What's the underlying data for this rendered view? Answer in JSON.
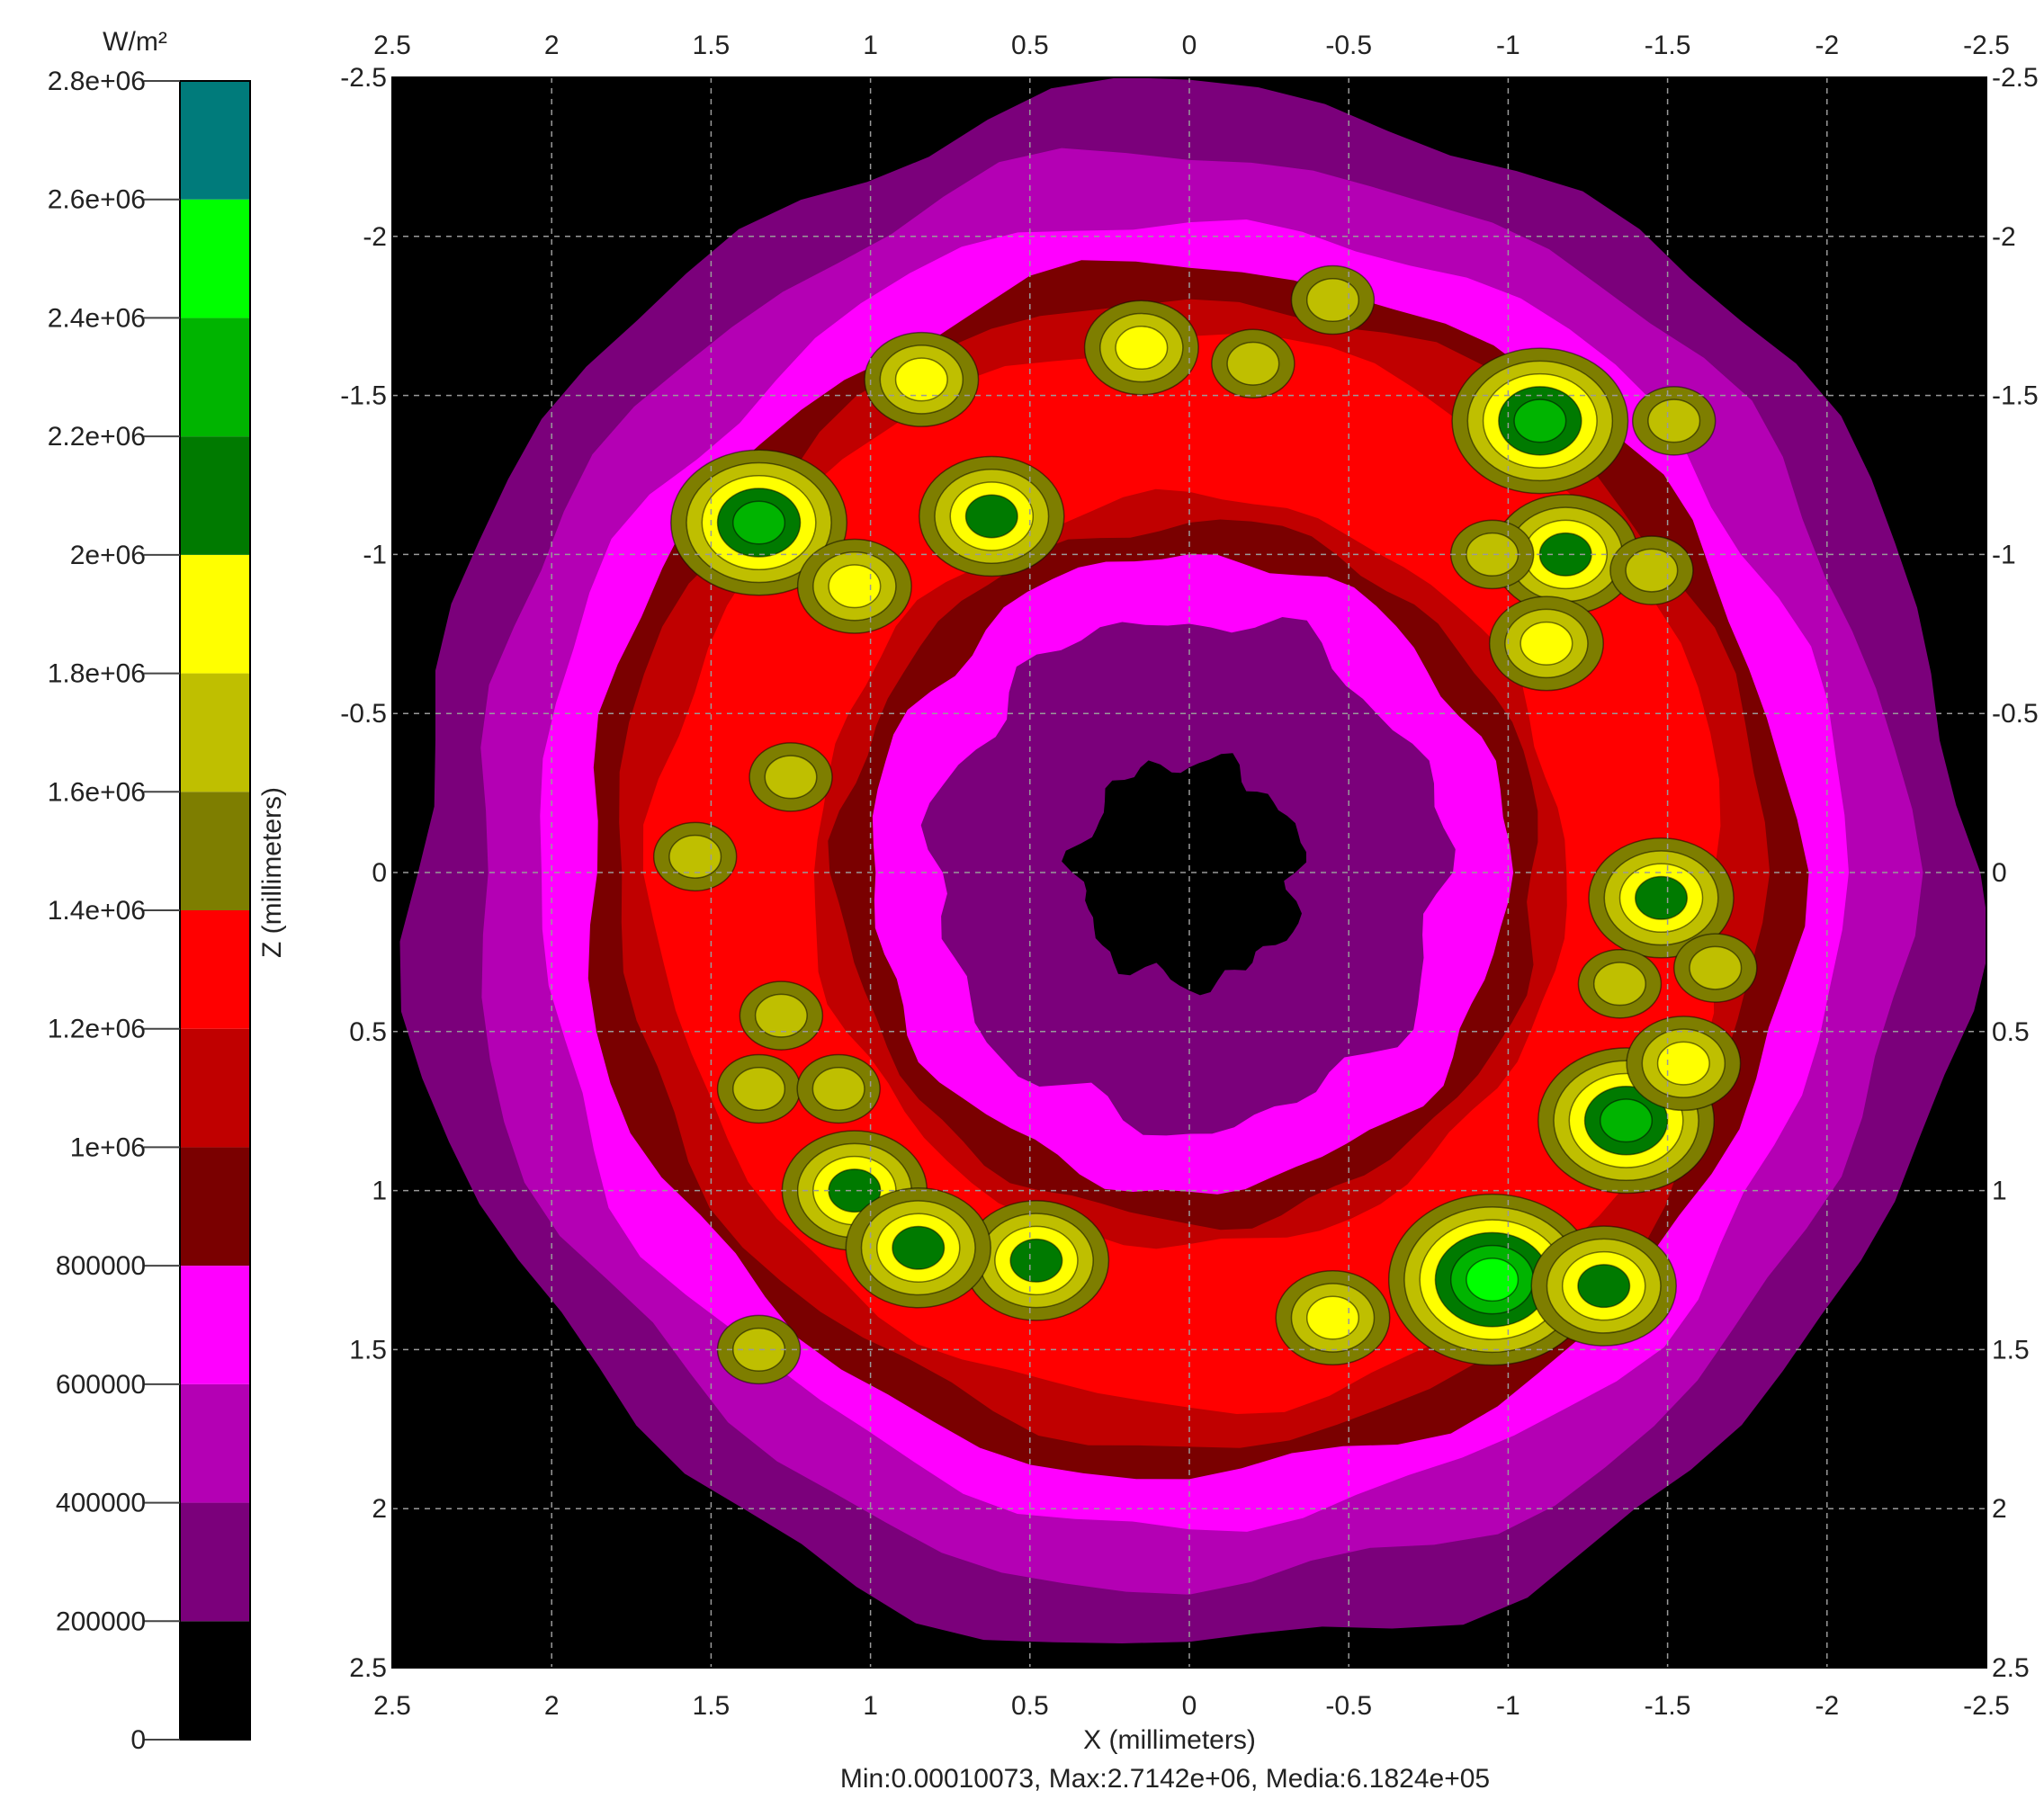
{
  "chart_data": {
    "type": "heatmap",
    "colorbar": {
      "unit": "W/m²",
      "range": [
        0,
        2800000
      ],
      "tick_labels": [
        "0",
        "200000",
        "400000",
        "600000",
        "800000",
        "1e+06",
        "1.2e+06",
        "1.4e+06",
        "1.6e+06",
        "1.8e+06",
        "2e+06",
        "2.2e+06",
        "2.4e+06",
        "2.6e+06",
        "2.8e+06"
      ],
      "levels": [
        {
          "from": 0,
          "to": 200000,
          "color": "#000000"
        },
        {
          "from": 200000,
          "to": 400000,
          "color": "#7b007b"
        },
        {
          "from": 400000,
          "to": 600000,
          "color": "#b400b4"
        },
        {
          "from": 600000,
          "to": 800000,
          "color": "#ff00ff"
        },
        {
          "from": 800000,
          "to": 1000000,
          "color": "#7a0000"
        },
        {
          "from": 1000000,
          "to": 1200000,
          "color": "#c00000"
        },
        {
          "from": 1200000,
          "to": 1400000,
          "color": "#ff0000"
        },
        {
          "from": 1400000,
          "to": 1600000,
          "color": "#7e7e00"
        },
        {
          "from": 1600000,
          "to": 1800000,
          "color": "#bfbf00"
        },
        {
          "from": 1800000,
          "to": 2000000,
          "color": "#ffff00"
        },
        {
          "from": 2000000,
          "to": 2200000,
          "color": "#007a00"
        },
        {
          "from": 2200000,
          "to": 2400000,
          "color": "#00b400"
        },
        {
          "from": 2400000,
          "to": 2600000,
          "color": "#00ff00"
        },
        {
          "from": 2600000,
          "to": 2800000,
          "color": "#007b7b"
        }
      ]
    },
    "x_axis": {
      "label": "X (millimeters)",
      "range": [
        2.5,
        -2.5
      ],
      "ticks": [
        2.5,
        2,
        1.5,
        1,
        0.5,
        0,
        -0.5,
        -1,
        -1.5,
        -2,
        -2.5
      ],
      "tick_labels": [
        "2.5",
        "2",
        "1.5",
        "1",
        "0.5",
        "0",
        "-0.5",
        "-1",
        "-1.5",
        "-2",
        "-2.5"
      ]
    },
    "z_axis": {
      "label": "Z (millimeters)",
      "range": [
        -2.5,
        2.5
      ],
      "ticks": [
        -2.5,
        -2,
        -1.5,
        -1,
        -0.5,
        0,
        0.5,
        1,
        1.5,
        2,
        2.5
      ],
      "tick_labels": [
        "-2.5",
        "-2",
        "-1.5",
        "-1",
        "-0.5",
        "0",
        "0.5",
        "1",
        "1.5",
        "2",
        "2.5"
      ]
    },
    "grid": true,
    "stats_text": "Min:0.00010073, Max:2.7142e+06, Media:6.1824e+05",
    "ring": {
      "center_x": 0,
      "center_z": 0,
      "inner_radius": 1.0,
      "outer_radius": 1.9,
      "max_intensity": 2714200,
      "mean_intensity": 618240
    },
    "hot_spots": [
      {
        "x": 1.35,
        "z": -1.1,
        "value": 2350000
      },
      {
        "x": 1.05,
        "z": -0.9,
        "value": 2050000
      },
      {
        "x": 0.62,
        "z": -1.12,
        "value": 2100000
      },
      {
        "x": 0.84,
        "z": -1.55,
        "value": 1950000
      },
      {
        "x": 0.15,
        "z": -1.65,
        "value": 1900000
      },
      {
        "x": -0.2,
        "z": -1.6,
        "value": 1850000
      },
      {
        "x": -0.45,
        "z": -1.8,
        "value": 1700000
      },
      {
        "x": -1.1,
        "z": -1.42,
        "value": 2450000
      },
      {
        "x": -1.18,
        "z": -1.0,
        "value": 2200000
      },
      {
        "x": -0.95,
        "z": -1.0,
        "value": 1850000
      },
      {
        "x": -1.12,
        "z": -0.72,
        "value": 1950000
      },
      {
        "x": -1.45,
        "z": -0.95,
        "value": 1800000
      },
      {
        "x": -1.52,
        "z": -1.42,
        "value": 1750000
      },
      {
        "x": -1.48,
        "z": 0.08,
        "value": 2150000
      },
      {
        "x": -1.35,
        "z": 0.35,
        "value": 1850000
      },
      {
        "x": -1.65,
        "z": 0.3,
        "value": 1800000
      },
      {
        "x": -1.37,
        "z": 0.78,
        "value": 2450000
      },
      {
        "x": -1.55,
        "z": 0.6,
        "value": 1900000
      },
      {
        "x": -0.95,
        "z": 1.28,
        "value": 2500000
      },
      {
        "x": -1.3,
        "z": 1.3,
        "value": 2150000
      },
      {
        "x": -0.45,
        "z": 1.4,
        "value": 1950000
      },
      {
        "x": 0.48,
        "z": 1.22,
        "value": 2100000
      },
      {
        "x": 1.05,
        "z": 1.0,
        "value": 2250000
      },
      {
        "x": 0.85,
        "z": 1.18,
        "value": 2100000
      },
      {
        "x": 1.55,
        "z": -0.05,
        "value": 1850000
      },
      {
        "x": 1.25,
        "z": -0.3,
        "value": 1750000
      },
      {
        "x": 1.28,
        "z": 0.45,
        "value": 1700000
      },
      {
        "x": 1.35,
        "z": 0.68,
        "value": 1750000
      },
      {
        "x": 1.1,
        "z": 0.68,
        "value": 1800000
      },
      {
        "x": 1.35,
        "z": 1.5,
        "value": 1850000
      }
    ]
  }
}
